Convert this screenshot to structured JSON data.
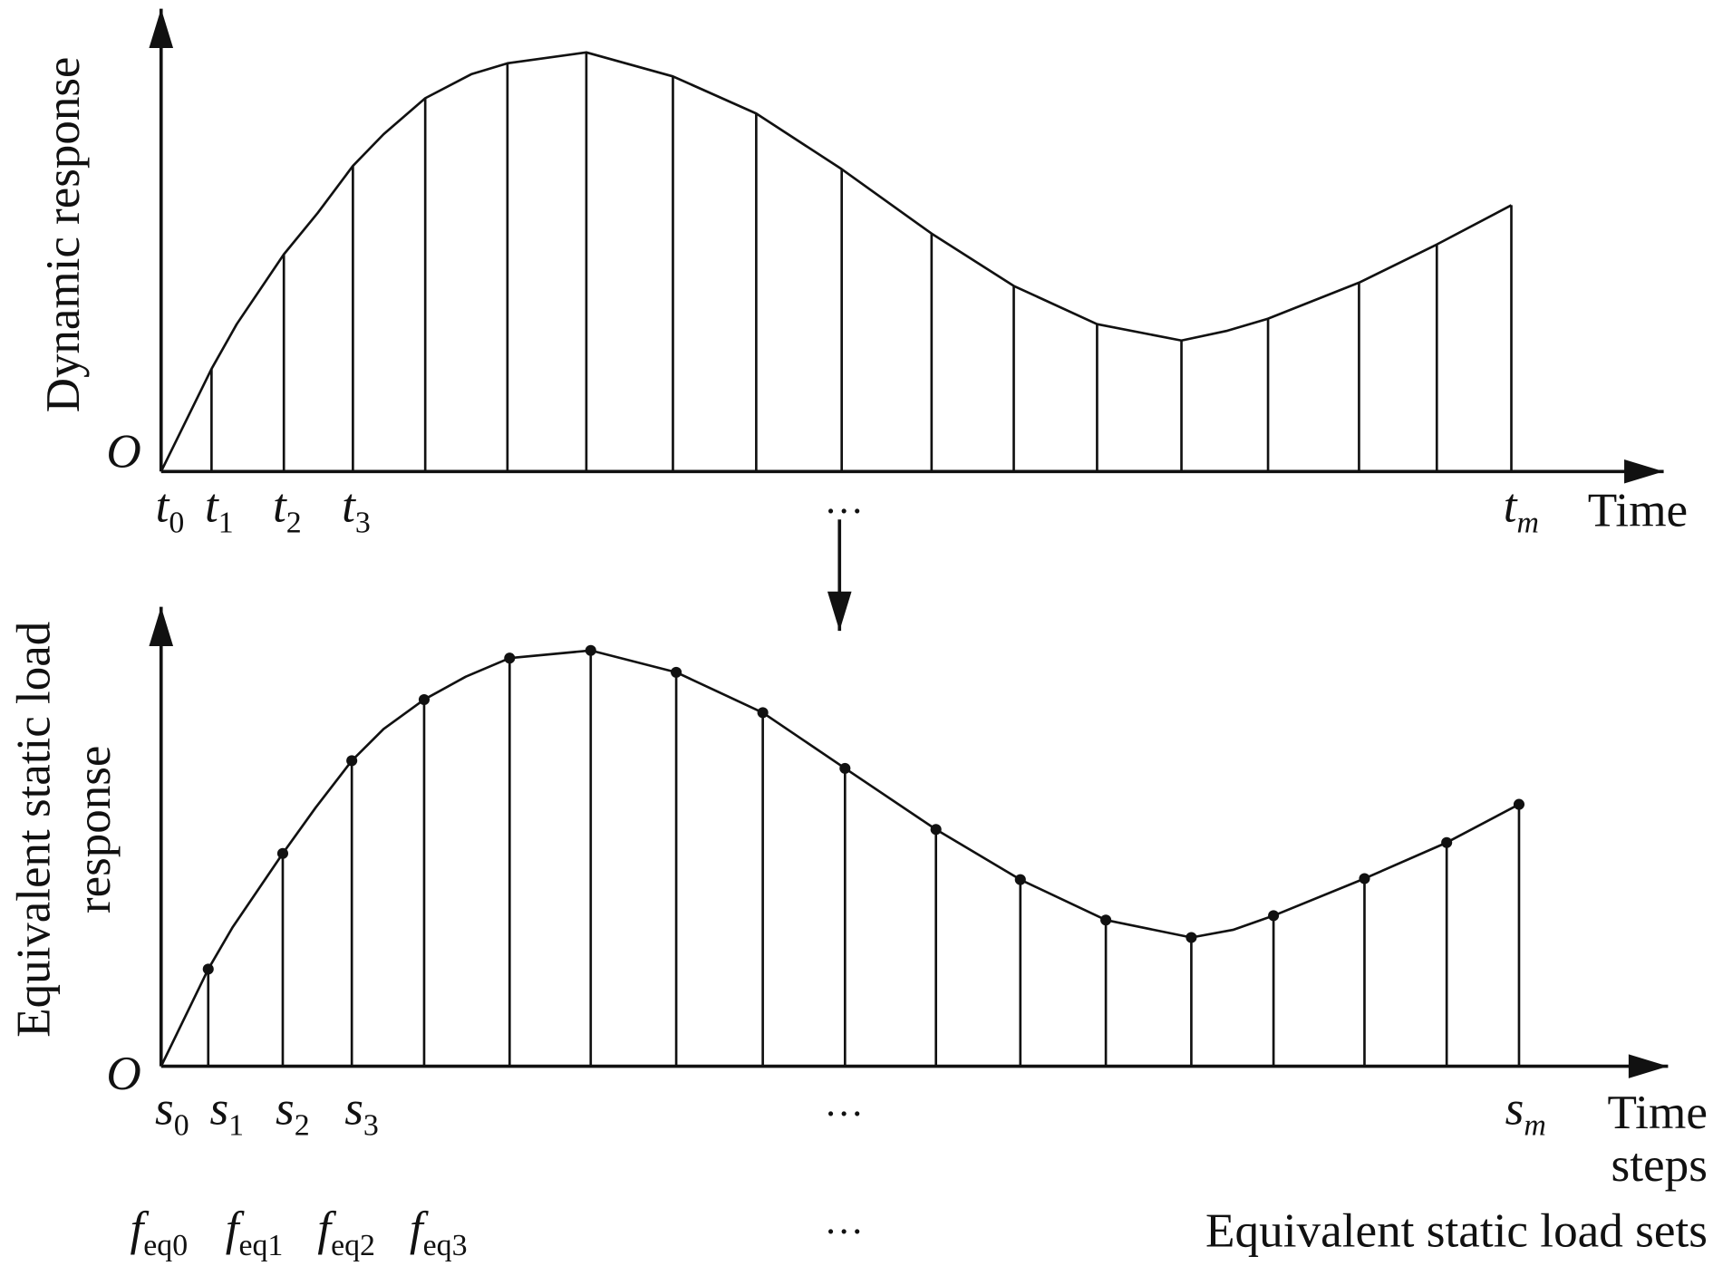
{
  "top_panel": {
    "y_label": "Dynamic response",
    "origin": "O",
    "x_label": "Time",
    "ellipsis": "…",
    "ticks": [
      {
        "base": "t",
        "sub": "0"
      },
      {
        "base": "t",
        "sub": "1"
      },
      {
        "base": "t",
        "sub": "2"
      },
      {
        "base": "t",
        "sub": "3"
      },
      {
        "base": "t",
        "sub": "m"
      }
    ]
  },
  "bottom_panel": {
    "y_label_lines": [
      "Equivalent static load",
      "response"
    ],
    "origin": "O",
    "x_label_lines": [
      "Time",
      "steps"
    ],
    "ellipsis": "…",
    "ticks": [
      {
        "base": "s",
        "sub": "0"
      },
      {
        "base": "s",
        "sub": "1"
      },
      {
        "base": "s",
        "sub": "2"
      },
      {
        "base": "s",
        "sub": "3"
      },
      {
        "base": "s",
        "sub": "m"
      }
    ],
    "load_sets": [
      {
        "base": "f",
        "sub": "eq0"
      },
      {
        "base": "f",
        "sub": "eq1"
      },
      {
        "base": "f",
        "sub": "eq2"
      },
      {
        "base": "f",
        "sub": "eq3"
      }
    ],
    "load_sets_ellipsis": "…",
    "load_sets_label": "Equivalent static load sets"
  }
}
